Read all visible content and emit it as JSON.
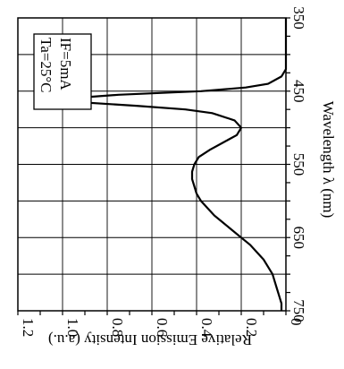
{
  "chart_data": {
    "type": "line",
    "orientation": "rotated 90 degrees clockwise (wavelength axis on right, intensity axis on bottom increasing leftward)",
    "xlabel": "Wavelength λ (nm)",
    "ylabel": "Relative Emission Intensity (a.u.)",
    "xlim": [
      350,
      750
    ],
    "ylim": [
      0,
      1.2
    ],
    "x_ticks": [
      350,
      450,
      550,
      650,
      750
    ],
    "y_ticks": [
      0,
      0.2,
      0.4,
      0.6,
      0.8,
      1.0,
      1.2
    ],
    "x_tick_labels": [
      "350",
      "450",
      "550",
      "650",
      "750"
    ],
    "y_tick_labels": [
      "0",
      "0.2",
      "0.4",
      "0.6",
      "0.8",
      "1.0",
      "1.2"
    ],
    "grid": true,
    "annotations": [
      "Ta=25°C",
      "IF=5mA"
    ],
    "series": [
      {
        "x": [
          350,
          400,
          420,
          430,
          440,
          445,
          450,
          455,
          460,
          462,
          465,
          470,
          475,
          480,
          490,
          500,
          510,
          520,
          530,
          540,
          550,
          560,
          570,
          580,
          590,
          600,
          610,
          620,
          630,
          640,
          650,
          660,
          670,
          680,
          690,
          700,
          710,
          720,
          730,
          740,
          750
        ],
        "y": [
          0,
          0,
          0.0,
          0.02,
          0.08,
          0.18,
          0.38,
          0.75,
          0.97,
          1.0,
          0.93,
          0.67,
          0.45,
          0.33,
          0.23,
          0.2,
          0.22,
          0.28,
          0.34,
          0.39,
          0.41,
          0.42,
          0.42,
          0.41,
          0.4,
          0.38,
          0.35,
          0.32,
          0.28,
          0.24,
          0.2,
          0.16,
          0.13,
          0.1,
          0.08,
          0.06,
          0.05,
          0.04,
          0.03,
          0.02,
          0.02
        ]
      }
    ]
  }
}
